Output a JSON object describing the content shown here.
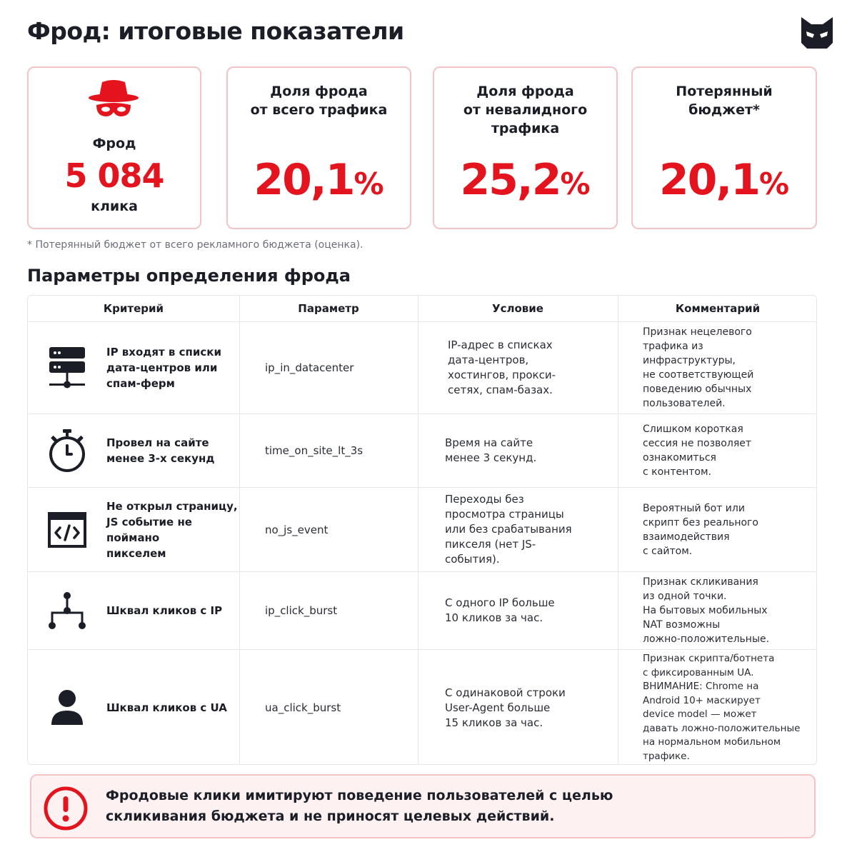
{
  "header": {
    "title": "Фрод: итоговые показатели",
    "logo_icon": "cat-mask-logo-icon"
  },
  "cards": {
    "fraud": {
      "icon": "spy-hat-mask-icon",
      "label": "Фрод",
      "value": "5 084",
      "unit": "клика"
    },
    "share_total": {
      "label": "Доля фрода\nот всего трафика",
      "value": "20,1",
      "pct": "%"
    },
    "share_invalid": {
      "label": "Доля фрода\nот невалидного\nтрафика",
      "value": "25,2",
      "pct": "%"
    },
    "lost_budget": {
      "label": "Потерянный\nбюджет*",
      "value": "20,1",
      "pct": "%"
    }
  },
  "footnote": "* Потерянный бюджет от всего рекламного бюджета (оценка).",
  "section_title": "Параметры определения фрода",
  "table": {
    "headers": {
      "criterion": "Критерий",
      "parameter": "Параметр",
      "condition": "Условие",
      "comment": "Комментарий"
    },
    "rows": [
      {
        "icon": "server-network-icon",
        "criterion": "IP входят в списки\nдата-центров или\nспам-ферм",
        "parameter": "ip_in_datacenter",
        "condition": "IP-адрес в списках\nдата-центров,\nхостингов, прокси-\nсетях, спам-базах.",
        "comment": "Признак нецелевого\nтрафика из\nинфраструктуры,\nне соответствующей\nповедению обычных\nпользователей."
      },
      {
        "icon": "stopwatch-icon",
        "criterion": "Провел на сайте\nменее 3-х секунд",
        "parameter": "time_on_site_lt_3s",
        "condition": "Время на сайте\nменее 3 секунд.",
        "comment": "Слишком короткая\nсессия не позволяет\nознакомиться\nс контентом."
      },
      {
        "icon": "code-window-icon",
        "criterion": "Не открыл страницу,\nJS событие не поймано\nпикселем",
        "parameter": "no_js_event",
        "condition": "Переходы без\nпросмотра страницы\nили без срабатывания\nпикселя (нет JS-\nсобытия).",
        "comment": "Вероятный бот или\nскрипт без реального\nвзаимодействия\nс сайтом."
      },
      {
        "icon": "network-hierarchy-icon",
        "criterion": "Шквал кликов с IP",
        "parameter": "ip_click_burst",
        "condition": "С одного IP больше\n10 кликов за час.",
        "comment": "Признак скликивания\nиз одной точки.\nНа бытовых мобильных\nNAT возможны\nложно-положительные."
      },
      {
        "icon": "user-icon",
        "criterion": "Шквал кликов с UA",
        "parameter": "ua_click_burst",
        "condition": "С одинаковой строки\nUser-Agent больше\n15 кликов за час.",
        "comment": "Признак скрипта/ботнета\nс фиксированным UA.\nВНИМАНИЕ: Chrome на\nAndroid 10+ маскирует\ndevice model — может\nдавать ложно-положительные\nна нормальном мобильном\nтрафике."
      }
    ]
  },
  "alert": {
    "icon": "exclamation-circle-icon",
    "text": "Фродовые клики имитируют поведение пользователей с целью\nскликивания бюджета и не приносят целевых действий."
  },
  "colors": {
    "accent_red": "#e3141d",
    "card_border": "#f2c4c6",
    "alert_bg": "#fdf1f1",
    "text_dark": "#1b1d27"
  }
}
